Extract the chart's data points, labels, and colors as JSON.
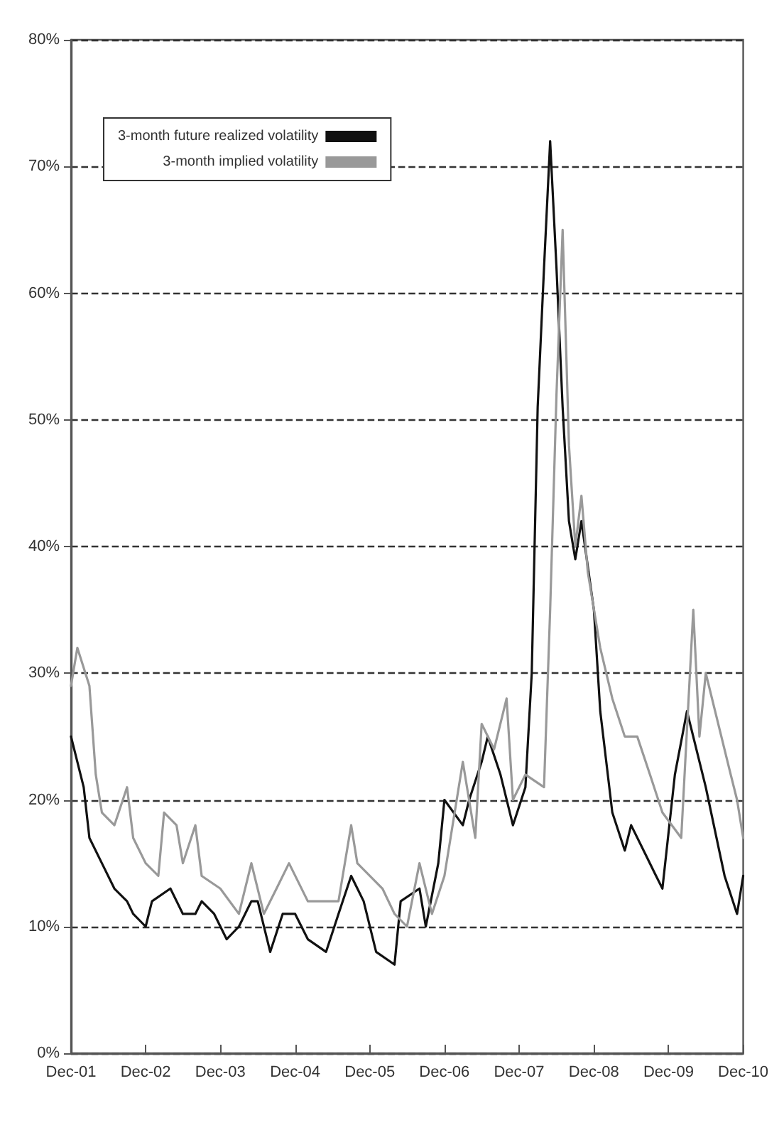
{
  "chart_data": {
    "type": "line",
    "series": [
      {
        "name": "3-month future realized volatility",
        "color": "#111111",
        "x": [
          "2001-12",
          "2002-02",
          "2002-03",
          "2002-05",
          "2002-07",
          "2002-09",
          "2002-10",
          "2002-12",
          "2003-01",
          "2003-04",
          "2003-06",
          "2003-08",
          "2003-09",
          "2003-11",
          "2004-01",
          "2004-03",
          "2004-05",
          "2004-06",
          "2004-08",
          "2004-10",
          "2004-12",
          "2005-02",
          "2005-05",
          "2005-07",
          "2005-09",
          "2005-11",
          "2006-01",
          "2006-04",
          "2006-05",
          "2006-08",
          "2006-09",
          "2006-11",
          "2006-12",
          "2007-03",
          "2007-04",
          "2007-06",
          "2007-07",
          "2007-09",
          "2007-11",
          "2008-01",
          "2008-02",
          "2008-03",
          "2008-04",
          "2008-05",
          "2008-06",
          "2008-07",
          "2008-08",
          "2008-09",
          "2008-10",
          "2008-12",
          "2009-01",
          "2009-03",
          "2009-05",
          "2009-06",
          "2009-08",
          "2009-10",
          "2009-11",
          "2010-01",
          "2010-03",
          "2010-06",
          "2010-09",
          "2010-11",
          "2010-12"
        ],
        "values": [
          25,
          21,
          17,
          15,
          13,
          12,
          11,
          10,
          12,
          13,
          11,
          11,
          12,
          11,
          9,
          10,
          12,
          12,
          8,
          11,
          11,
          9,
          8,
          11,
          14,
          12,
          8,
          7,
          12,
          13,
          10,
          15,
          20,
          18,
          20,
          23,
          25,
          22,
          18,
          21,
          30,
          51,
          62,
          72,
          62,
          51,
          42,
          39,
          42,
          35,
          27,
          19,
          16,
          18,
          16,
          14,
          13,
          22,
          27,
          21,
          14,
          11,
          14
        ]
      },
      {
        "name": "3-month implied volatility",
        "color": "#999999",
        "x": [
          "2001-12",
          "2002-01",
          "2002-03",
          "2002-04",
          "2002-05",
          "2002-07",
          "2002-09",
          "2002-10",
          "2002-12",
          "2003-02",
          "2003-03",
          "2003-05",
          "2003-06",
          "2003-08",
          "2003-09",
          "2003-12",
          "2004-03",
          "2004-05",
          "2004-07",
          "2004-09",
          "2004-11",
          "2005-02",
          "2005-04",
          "2005-07",
          "2005-09",
          "2005-10",
          "2006-02",
          "2006-04",
          "2006-06",
          "2006-08",
          "2006-10",
          "2006-12",
          "2007-03",
          "2007-05",
          "2007-06",
          "2007-08",
          "2007-10",
          "2007-11",
          "2008-01",
          "2008-04",
          "2008-05",
          "2008-06",
          "2008-07",
          "2008-08",
          "2008-09",
          "2008-10",
          "2008-11",
          "2009-01",
          "2009-03",
          "2009-05",
          "2009-07",
          "2009-09",
          "2009-11",
          "2010-02",
          "2010-04",
          "2010-05",
          "2010-06",
          "2010-08",
          "2010-10",
          "2010-11",
          "2010-12"
        ],
        "values": [
          29,
          32,
          29,
          22,
          19,
          18,
          21,
          17,
          15,
          14,
          19,
          18,
          15,
          18,
          14,
          13,
          11,
          15,
          11,
          13,
          15,
          12,
          12,
          12,
          18,
          15,
          13,
          11,
          10,
          15,
          11,
          14,
          23,
          17,
          26,
          24,
          28,
          20,
          22,
          21,
          35,
          52,
          65,
          48,
          40,
          44,
          38,
          32,
          28,
          25,
          25,
          22,
          19,
          17,
          35,
          25,
          30,
          26,
          22,
          20,
          17
        ]
      }
    ],
    "xlim": [
      "2001-12",
      "2010-12"
    ],
    "xticks": [
      {
        "value": "2001-12",
        "label": "Dec-01"
      },
      {
        "value": "2002-12",
        "label": "Dec-02"
      },
      {
        "value": "2003-12",
        "label": "Dec-03"
      },
      {
        "value": "2004-12",
        "label": "Dec-04"
      },
      {
        "value": "2005-12",
        "label": "Dec-05"
      },
      {
        "value": "2006-12",
        "label": "Dec-06"
      },
      {
        "value": "2007-12",
        "label": "Dec-07"
      },
      {
        "value": "2008-12",
        "label": "Dec-08"
      },
      {
        "value": "2009-12",
        "label": "Dec-09"
      },
      {
        "value": "2010-12",
        "label": "Dec-10"
      }
    ],
    "ylim": [
      0,
      80
    ],
    "yticks": [
      {
        "value": 0,
        "label": "0%"
      },
      {
        "value": 10,
        "label": "10%"
      },
      {
        "value": 20,
        "label": "20%"
      },
      {
        "value": 30,
        "label": "30%"
      },
      {
        "value": 40,
        "label": "40%"
      },
      {
        "value": 50,
        "label": "50%"
      },
      {
        "value": 60,
        "label": "60%"
      },
      {
        "value": 70,
        "label": "70%"
      },
      {
        "value": 80,
        "label": "80%"
      }
    ],
    "grid": "y",
    "legend": "top left",
    "marker": "none",
    "line_style": "solid"
  }
}
